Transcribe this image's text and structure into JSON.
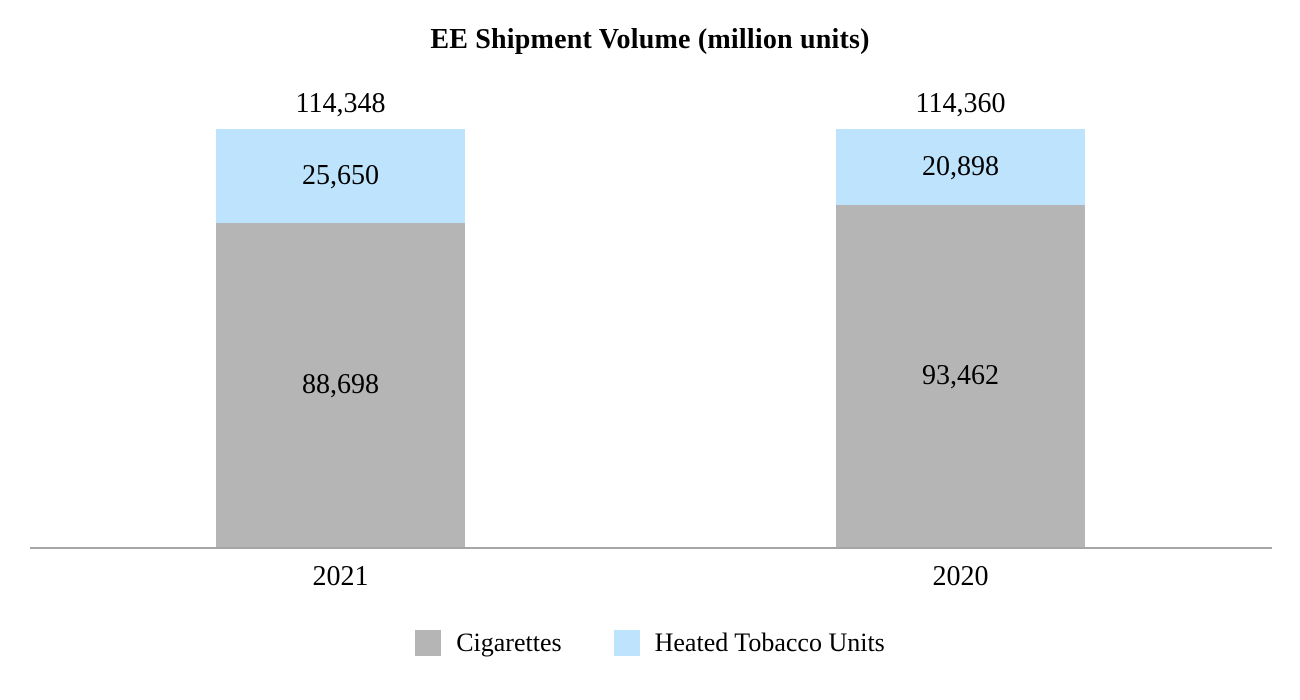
{
  "chart_data": {
    "type": "bar",
    "stacked": true,
    "title": "EE Shipment Volume (million units)",
    "categories": [
      "2021",
      "2020"
    ],
    "series": [
      {
        "name": "Cigarettes",
        "color": "#b5b5b5",
        "values": [
          88698,
          93462
        ]
      },
      {
        "name": "Heated Tobacco Units",
        "color": "#bee3fc",
        "values": [
          25650,
          20898
        ]
      }
    ],
    "totals": [
      114348,
      114360
    ],
    "ylim": [
      0,
      114360
    ],
    "grid": false,
    "legend_position": "bottom",
    "axis_line_color": "#a6a6a6",
    "xlabel": "",
    "ylabel": ""
  },
  "display": {
    "totals": [
      "114,348",
      "114,360"
    ],
    "htu": [
      "25,650",
      "20,898"
    ],
    "cig": [
      "88,698",
      "93,462"
    ]
  }
}
